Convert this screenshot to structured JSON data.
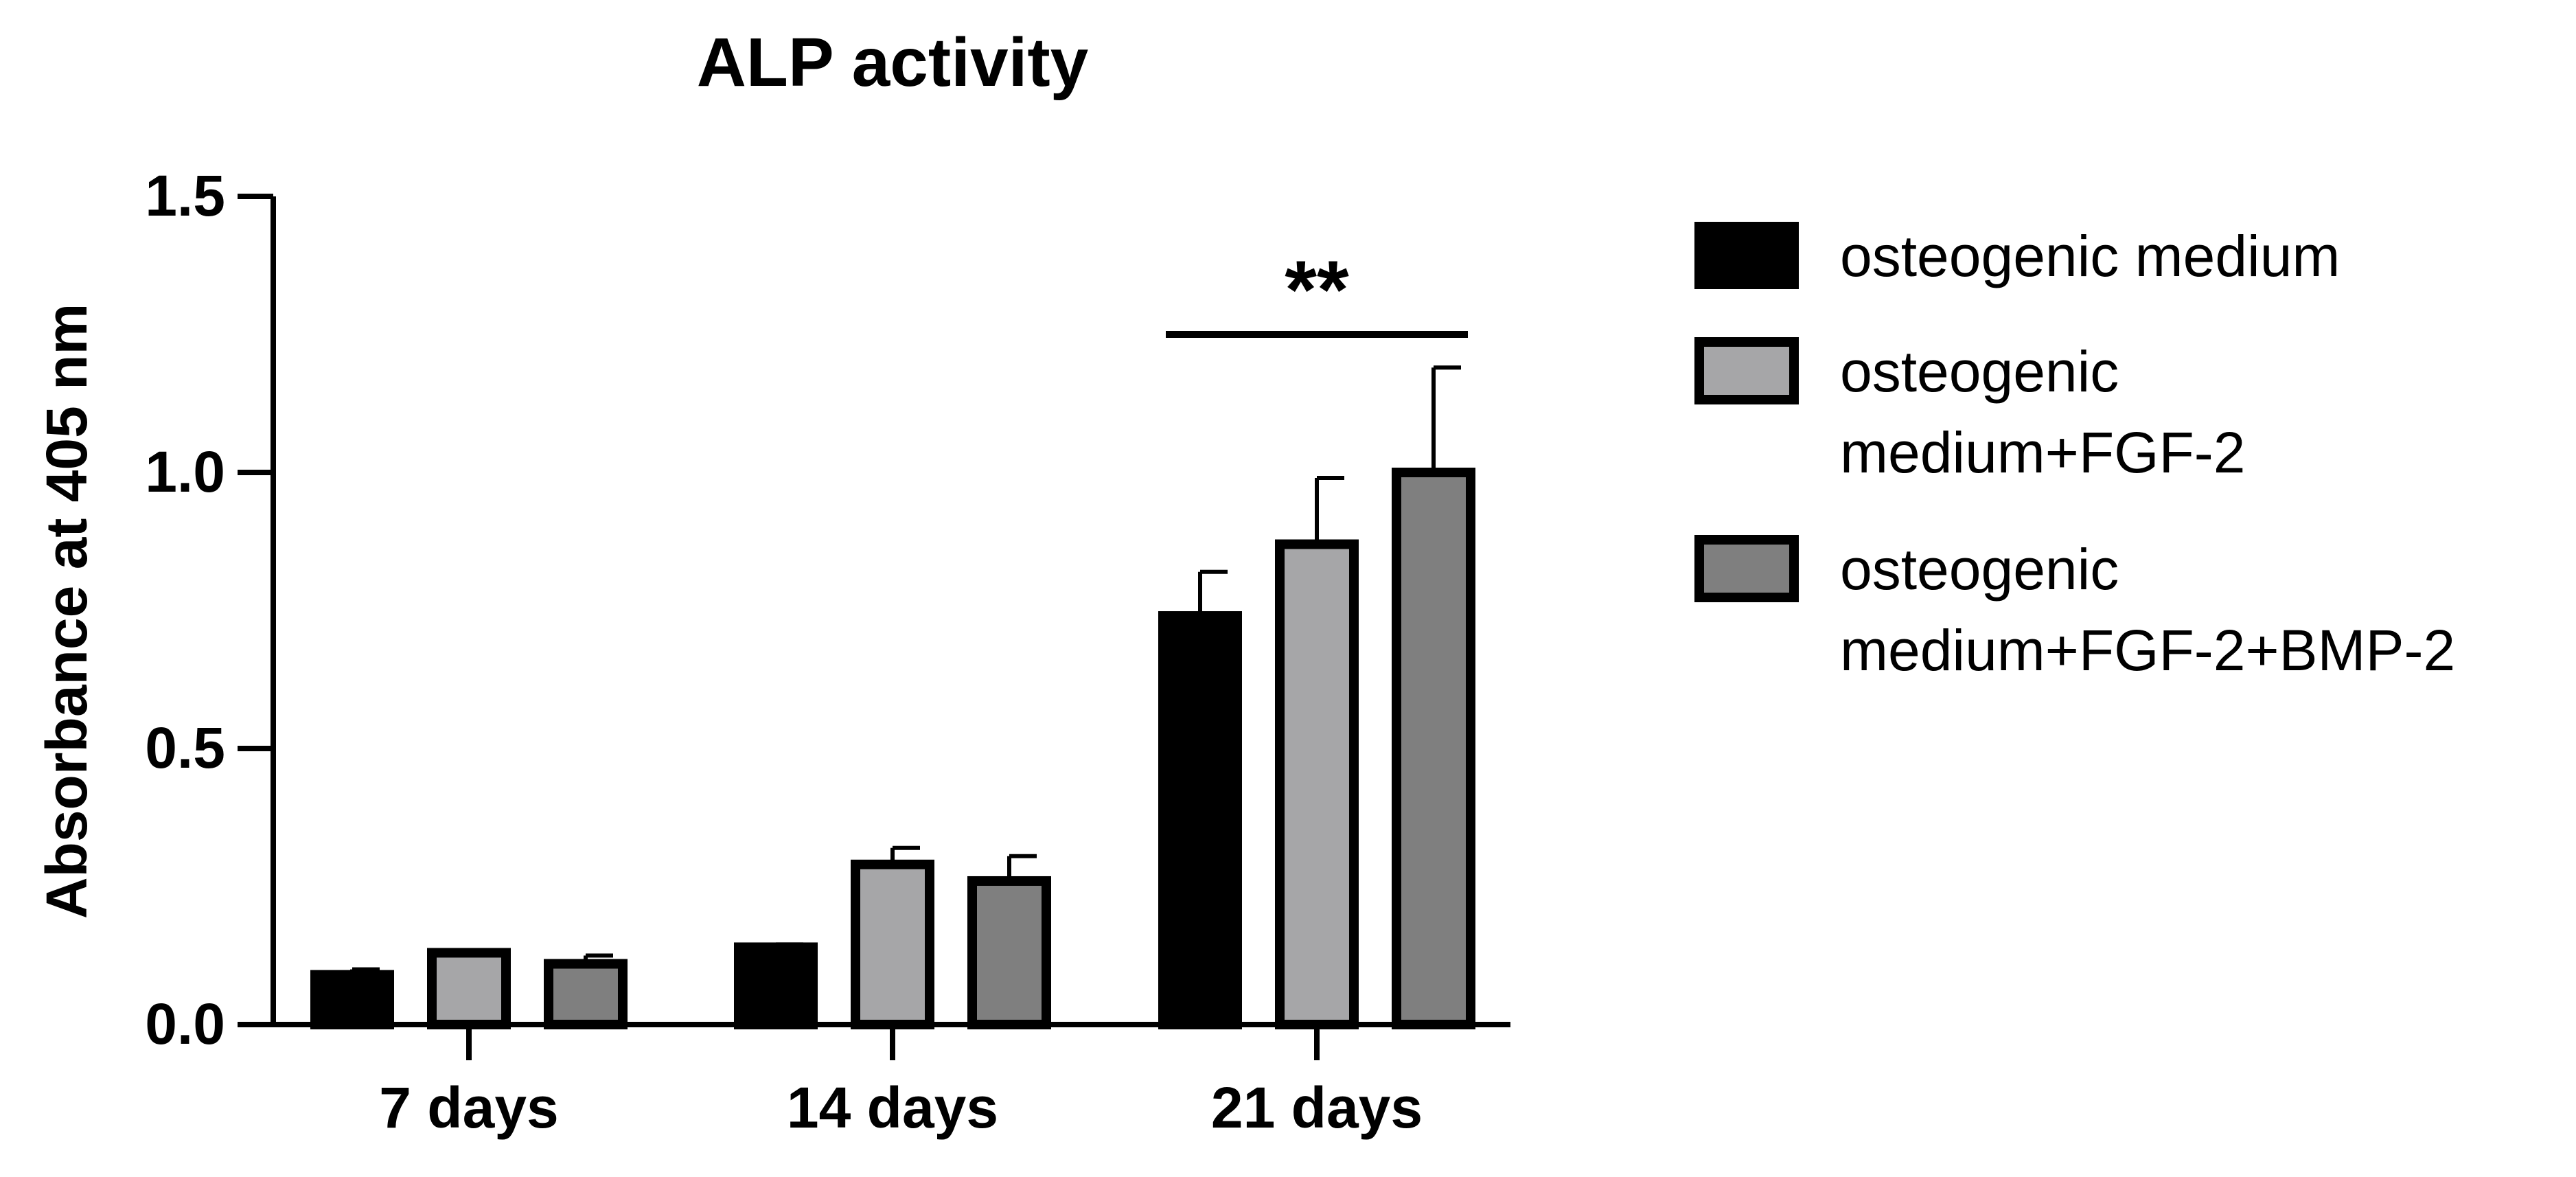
{
  "chart_data": {
    "type": "bar",
    "title": "ALP activity",
    "ylabel": "Absorbance at 405 nm",
    "xlabel": "",
    "ylim": [
      0,
      1.5
    ],
    "yticks": [
      0.0,
      0.5,
      1.0,
      1.5
    ],
    "ytick_labels": [
      "0.0",
      "0.5",
      "1.0",
      "1.5"
    ],
    "categories": [
      "7 days",
      "14 days",
      "21 days"
    ],
    "series": [
      {
        "name": "osteogenic medium",
        "legend_lines": [
          "osteogenic medium"
        ],
        "color": "#000000",
        "values": [
          0.09,
          0.14,
          0.74
        ],
        "errors": [
          0.01,
          0.005,
          0.08
        ]
      },
      {
        "name": "osteogenic medium+FGF-2",
        "legend_lines": [
          "osteogenic",
          "medium+FGF-2"
        ],
        "color": "#a6a6a8",
        "values": [
          0.13,
          0.29,
          0.87
        ],
        "errors": [
          0.005,
          0.03,
          0.12
        ]
      },
      {
        "name": "osteogenic medium+FGF-2+BMP-2",
        "legend_lines": [
          "osteogenic",
          "medium+FGF-2+BMP-2"
        ],
        "color": "#7f7f7f",
        "values": [
          0.11,
          0.26,
          1.0
        ],
        "errors": [
          0.015,
          0.045,
          0.19
        ]
      }
    ],
    "annotations": [
      {
        "text": "**",
        "category": "21 days",
        "from_series": 0,
        "to_series": 2,
        "y": 1.25
      }
    ],
    "legend_position": "right",
    "grid": false
  }
}
